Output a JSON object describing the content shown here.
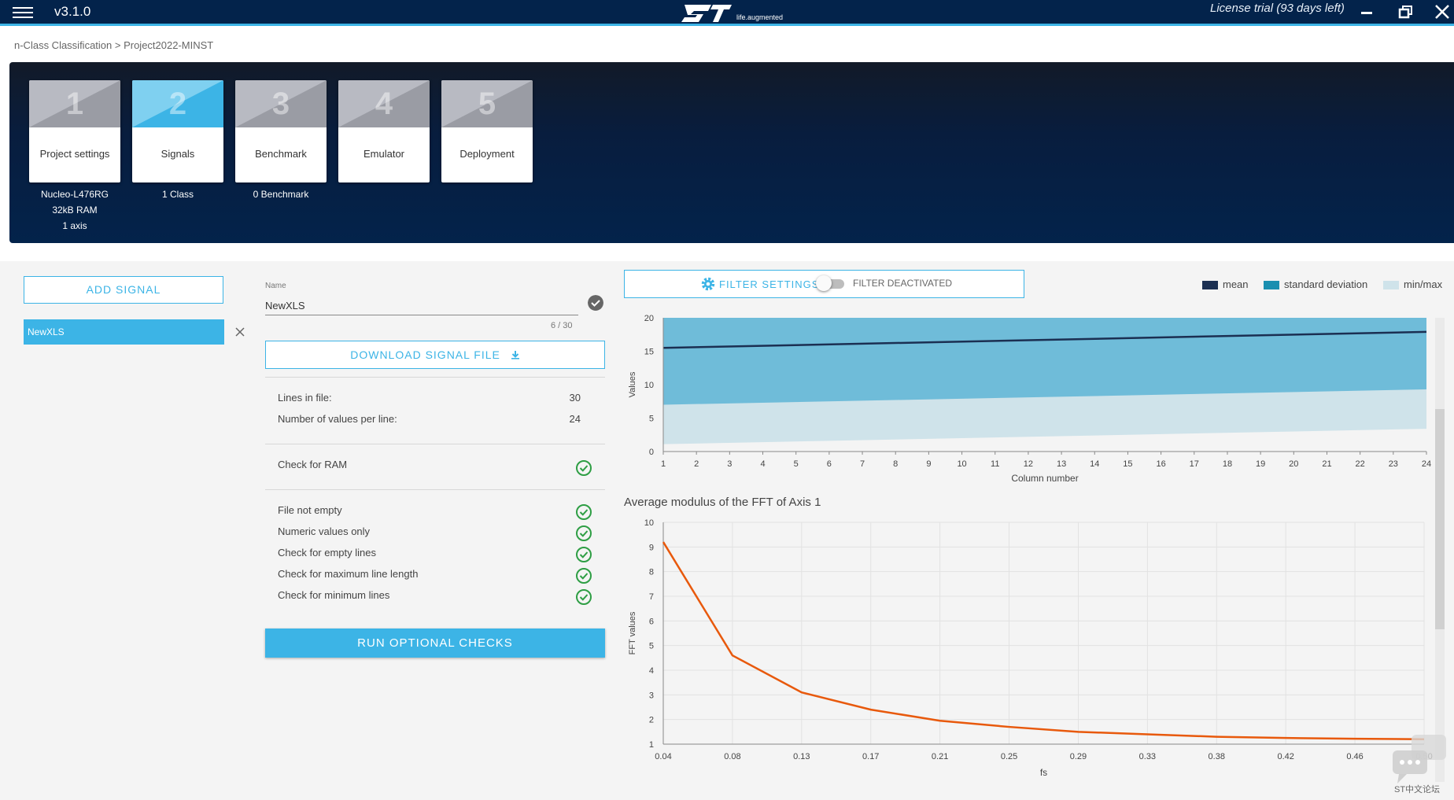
{
  "app": {
    "version": "v3.1.0",
    "license": "License trial (93 days left)",
    "logo_tagline": "life.augmented",
    "logo_text": "ST"
  },
  "breadcrumb": "n-Class Classification > Project2022-MINST",
  "steps": [
    {
      "num": "1",
      "label": "Project settings",
      "sub": [
        "Nucleo-L476RG",
        "32kB RAM",
        "1 axis"
      ]
    },
    {
      "num": "2",
      "label": "Signals",
      "sub": [
        "1 Class"
      ]
    },
    {
      "num": "3",
      "label": "Benchmark",
      "sub": [
        "0 Benchmark"
      ]
    },
    {
      "num": "4",
      "label": "Emulator",
      "sub": []
    },
    {
      "num": "5",
      "label": "Deployment",
      "sub": []
    }
  ],
  "signals": {
    "add_label": "ADD SIGNAL",
    "items": [
      {
        "name": "NewXLS"
      }
    ]
  },
  "detail": {
    "name_label": "Name",
    "name_value": "NewXLS",
    "counter": "6 / 30",
    "download_label": "DOWNLOAD SIGNAL FILE",
    "lines_label": "Lines in file:",
    "lines_value": "30",
    "values_label": "Number of values per line:",
    "values_value": "24",
    "ram_label": "Check for RAM",
    "checks": [
      "File not empty",
      "Numeric values only",
      "Check for empty lines",
      "Check for maximum line length",
      "Check for minimum lines"
    ],
    "run_label": "RUN OPTIONAL CHECKS"
  },
  "filter": {
    "settings_label": "FILTER SETTINGS",
    "toggle_label": "FILTER DEACTIVATED"
  },
  "legend": [
    {
      "label": "mean",
      "color": "#1b2f52"
    },
    {
      "label": "standard deviation",
      "color": "#1a8fb0"
    },
    {
      "label": "min/max",
      "color": "#cfe3ea"
    }
  ],
  "chart_data": [
    {
      "type": "area",
      "title": "",
      "xlabel": "Column number",
      "ylabel": "Values",
      "x": [
        1,
        2,
        3,
        4,
        5,
        6,
        7,
        8,
        9,
        10,
        11,
        12,
        13,
        14,
        15,
        16,
        17,
        18,
        19,
        20,
        21,
        22,
        23,
        24
      ],
      "xlim": [
        1,
        24
      ],
      "ylim": [
        0,
        20
      ],
      "yticks": [
        0,
        5,
        10,
        15,
        20
      ],
      "series": [
        {
          "name": "mean",
          "values_start": 15.5,
          "values_end": 17.9
        },
        {
          "name": "standard deviation",
          "upper_start": 20,
          "upper_end": 20,
          "lower_start": 7,
          "lower_end": 9.3
        },
        {
          "name": "min/max",
          "upper_start": 20,
          "upper_end": 20,
          "lower_start": 1.1,
          "lower_end": 3.4
        }
      ],
      "grid": false
    },
    {
      "type": "line",
      "title": "Average modulus of the FFT of Axis 1",
      "xlabel": "fs",
      "ylabel": "FFT values",
      "x": [
        0.04,
        0.08,
        0.13,
        0.17,
        0.21,
        0.25,
        0.29,
        0.33,
        0.38,
        0.42,
        0.46,
        0.5
      ],
      "x_ticklabels": [
        "0.04",
        "0.08",
        "0.13",
        "0.17",
        "0.21",
        "0.25",
        "0.29",
        "0.33",
        "0.38",
        "0.42",
        "0.46",
        "0.50"
      ],
      "ylim": [
        1,
        10
      ],
      "yticks": [
        1,
        2,
        3,
        4,
        5,
        6,
        7,
        8,
        9,
        10
      ],
      "series": [
        {
          "values": [
            9.2,
            4.6,
            3.1,
            2.4,
            1.95,
            1.7,
            1.5,
            1.4,
            1.3,
            1.25,
            1.22,
            1.2
          ],
          "color": "#e8590c"
        }
      ],
      "grid": true
    }
  ],
  "watermark": "ST中文论坛"
}
